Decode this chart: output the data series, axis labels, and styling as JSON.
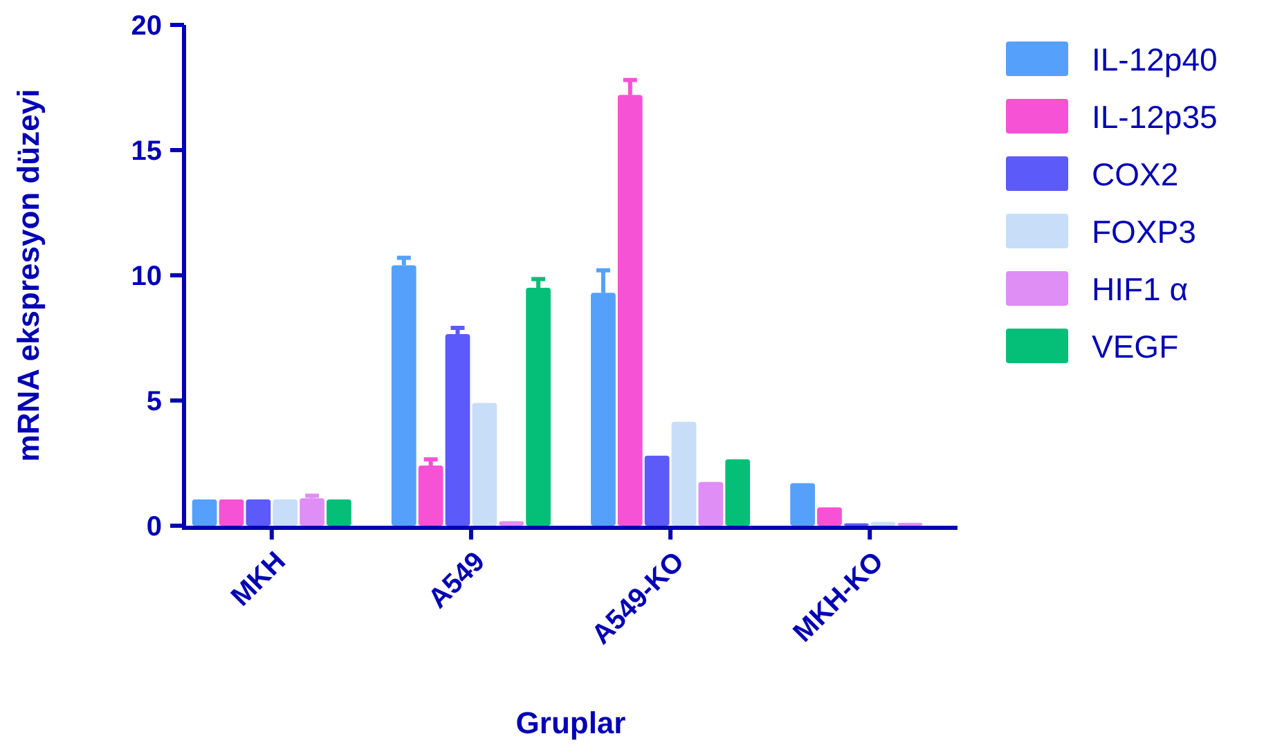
{
  "chart_data": {
    "type": "bar",
    "xlabel": "Gruplar",
    "ylabel": "mRNA ekspresyon düzeyi",
    "categories": [
      "MKH",
      "A549",
      "A549-KO",
      "MKH-KO"
    ],
    "ylim": [
      0,
      20
    ],
    "yticks": [
      0,
      5,
      10,
      15,
      20
    ],
    "legend": "right",
    "grid": false,
    "series": [
      {
        "name": "IL-12p40",
        "color": "#55a0fb",
        "values": [
          1.05,
          10.4,
          9.3,
          1.7
        ],
        "errors": [
          null,
          0.3,
          0.9,
          null
        ]
      },
      {
        "name": "IL-12p35",
        "color": "#f652d6",
        "values": [
          1.05,
          2.4,
          17.2,
          0.73
        ],
        "errors": [
          null,
          0.25,
          0.6,
          null
        ]
      },
      {
        "name": "COX2",
        "color": "#5c5af8",
        "values": [
          1.05,
          7.65,
          2.8,
          0.1
        ],
        "errors": [
          null,
          0.25,
          null,
          null
        ]
      },
      {
        "name": "FOXP3",
        "color": "#c8ddf8",
        "values": [
          1.05,
          4.9,
          4.15,
          0.15
        ],
        "errors": [
          null,
          null,
          null,
          null
        ]
      },
      {
        "name": "HIF1 α",
        "color": "#df8ef5",
        "values": [
          1.1,
          0.18,
          1.75,
          0.12
        ],
        "errors": [
          0.1,
          null,
          null,
          null
        ]
      },
      {
        "name": "VEGF",
        "color": "#05bf79",
        "values": [
          1.05,
          9.5,
          2.65,
          null
        ],
        "errors": [
          null,
          0.35,
          null,
          null
        ]
      }
    ]
  }
}
